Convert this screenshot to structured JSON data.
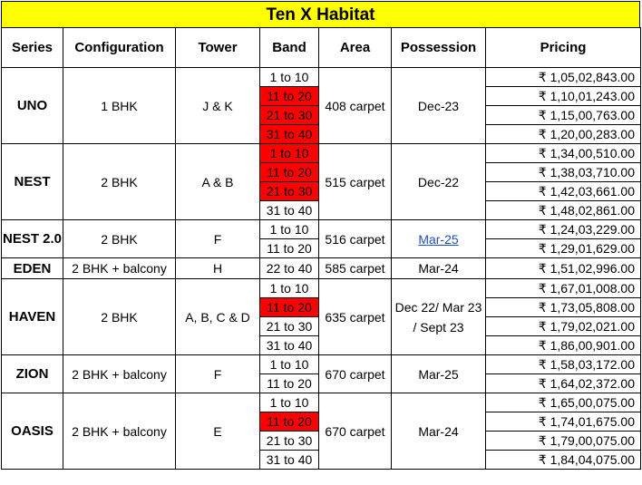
{
  "title": "Ten X Habitat",
  "headers": [
    "Series",
    "Configuration",
    "Tower",
    "Band",
    "Area",
    "Possession",
    "Pricing"
  ],
  "colors": {
    "title_bg": "#ffff00",
    "highlight": "#ff0000",
    "link": "#1f4fbf"
  },
  "groups": [
    {
      "series": "UNO",
      "configuration": "1 BHK",
      "tower": "J & K",
      "area": "408 carpet",
      "possession": "Dec-23",
      "possession_link": false,
      "rows": [
        {
          "band": "1 to 10",
          "highlight": false,
          "price": "₹ 1,05,02,843.00"
        },
        {
          "band": "11 to 20",
          "highlight": true,
          "price": "₹ 1,10,01,243.00"
        },
        {
          "band": "21 to 30",
          "highlight": true,
          "price": "₹ 1,15,00,763.00"
        },
        {
          "band": "31 to 40",
          "highlight": true,
          "price": "₹ 1,20,00,283.00"
        }
      ]
    },
    {
      "series": "NEST",
      "configuration": "2 BHK",
      "tower": "A & B",
      "area": "515 carpet",
      "possession": "Dec-22",
      "possession_link": false,
      "rows": [
        {
          "band": "1 to 10",
          "highlight": true,
          "price": "₹ 1,34,00,510.00"
        },
        {
          "band": "11 to 20",
          "highlight": true,
          "price": "₹ 1,38,03,710.00"
        },
        {
          "band": "21 to 30",
          "highlight": true,
          "price": "₹ 1,42,03,661.00"
        },
        {
          "band": "31 to 40",
          "highlight": false,
          "price": "₹ 1,48,02,861.00"
        }
      ]
    },
    {
      "series": "NEST 2.0",
      "configuration": "2 BHK",
      "tower": "F",
      "area": "516 carpet",
      "possession": "Mar-25",
      "possession_link": true,
      "rows": [
        {
          "band": "1 to 10",
          "highlight": false,
          "price": "₹ 1,24,03,229.00"
        },
        {
          "band": "11 to 20",
          "highlight": false,
          "price": "₹ 1,29,01,629.00"
        }
      ]
    },
    {
      "series": "EDEN",
      "configuration": "2 BHK + balcony",
      "tower": "H",
      "area": "585 carpet",
      "possession": "Mar-24",
      "possession_link": false,
      "rows": [
        {
          "band": "22 to 40",
          "highlight": false,
          "price": "₹ 1,51,02,996.00"
        }
      ]
    },
    {
      "series": "HAVEN",
      "configuration": "2 BHK",
      "tower": "A, B, C & D",
      "area": "635 carpet",
      "possession": "Dec 22/ Mar 23 / Sept 23",
      "possession_link": false,
      "rows": [
        {
          "band": "1 to 10",
          "highlight": false,
          "price": "₹ 1,67,01,008.00"
        },
        {
          "band": "11 to 20",
          "highlight": true,
          "price": "₹ 1,73,05,808.00"
        },
        {
          "band": "21 to 30",
          "highlight": false,
          "price": "₹ 1,79,02,021.00"
        },
        {
          "band": "31 to 40",
          "highlight": false,
          "price": "₹ 1,86,00,901.00"
        }
      ]
    },
    {
      "series": "ZION",
      "configuration": "2 BHK + balcony",
      "tower": "F",
      "area": "670 carpet",
      "possession": "Mar-25",
      "possession_link": false,
      "rows": [
        {
          "band": "1 to 10",
          "highlight": false,
          "price": "₹ 1,58,03,172.00"
        },
        {
          "band": "11 to 20",
          "highlight": false,
          "price": "₹ 1,64,02,372.00"
        }
      ]
    },
    {
      "series": "OASIS",
      "configuration": "2 BHK + balcony",
      "tower": "E",
      "area": "670 carpet",
      "possession": "Mar-24",
      "possession_link": false,
      "rows": [
        {
          "band": "1 to 10",
          "highlight": false,
          "price": "₹ 1,65,00,075.00"
        },
        {
          "band": "11 to 20",
          "highlight": true,
          "price": "₹ 1,74,01,675.00"
        },
        {
          "band": "21 to 30",
          "highlight": false,
          "price": "₹ 1,79,00,075.00"
        },
        {
          "band": "31 to 40",
          "highlight": false,
          "price": "₹ 1,84,04,075.00"
        }
      ]
    }
  ]
}
